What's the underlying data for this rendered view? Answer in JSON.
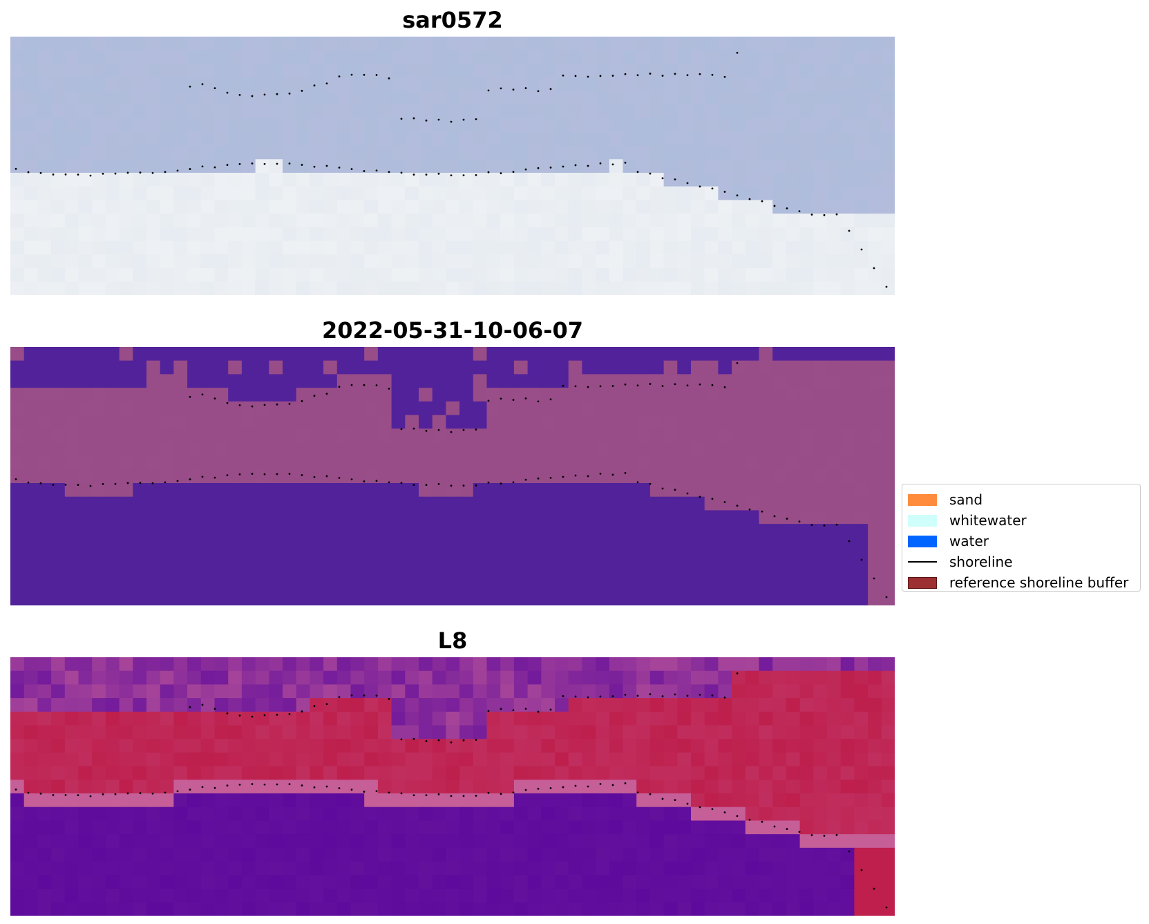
{
  "panels": [
    {
      "title": "sar0572",
      "palette": "sar"
    },
    {
      "title": "2022-05-31-10-06-07",
      "palette": "classified"
    },
    {
      "title": "L8",
      "palette": "index"
    }
  ],
  "legend": {
    "items": [
      {
        "label": "sand",
        "color": "#ff8c3c",
        "type": "patch"
      },
      {
        "label": "whitewater",
        "color": "#cffffa",
        "type": "patch"
      },
      {
        "label": "water",
        "color": "#0064ff",
        "type": "patch"
      },
      {
        "label": "shoreline",
        "color": "#000000",
        "type": "line"
      },
      {
        "label": "reference shoreline buffer",
        "color": "#9b2f31",
        "type": "patch"
      }
    ]
  },
  "colors": {
    "sar_water": "#b4bcdc",
    "sar_land": "#eef1f4",
    "class_land": "#984d88",
    "class_water": "#52229a",
    "index_water": "#5e0a9c",
    "index_land": "#be1f4c",
    "index_edge": "#c65e98",
    "shoreline_dots": "#000000"
  }
}
